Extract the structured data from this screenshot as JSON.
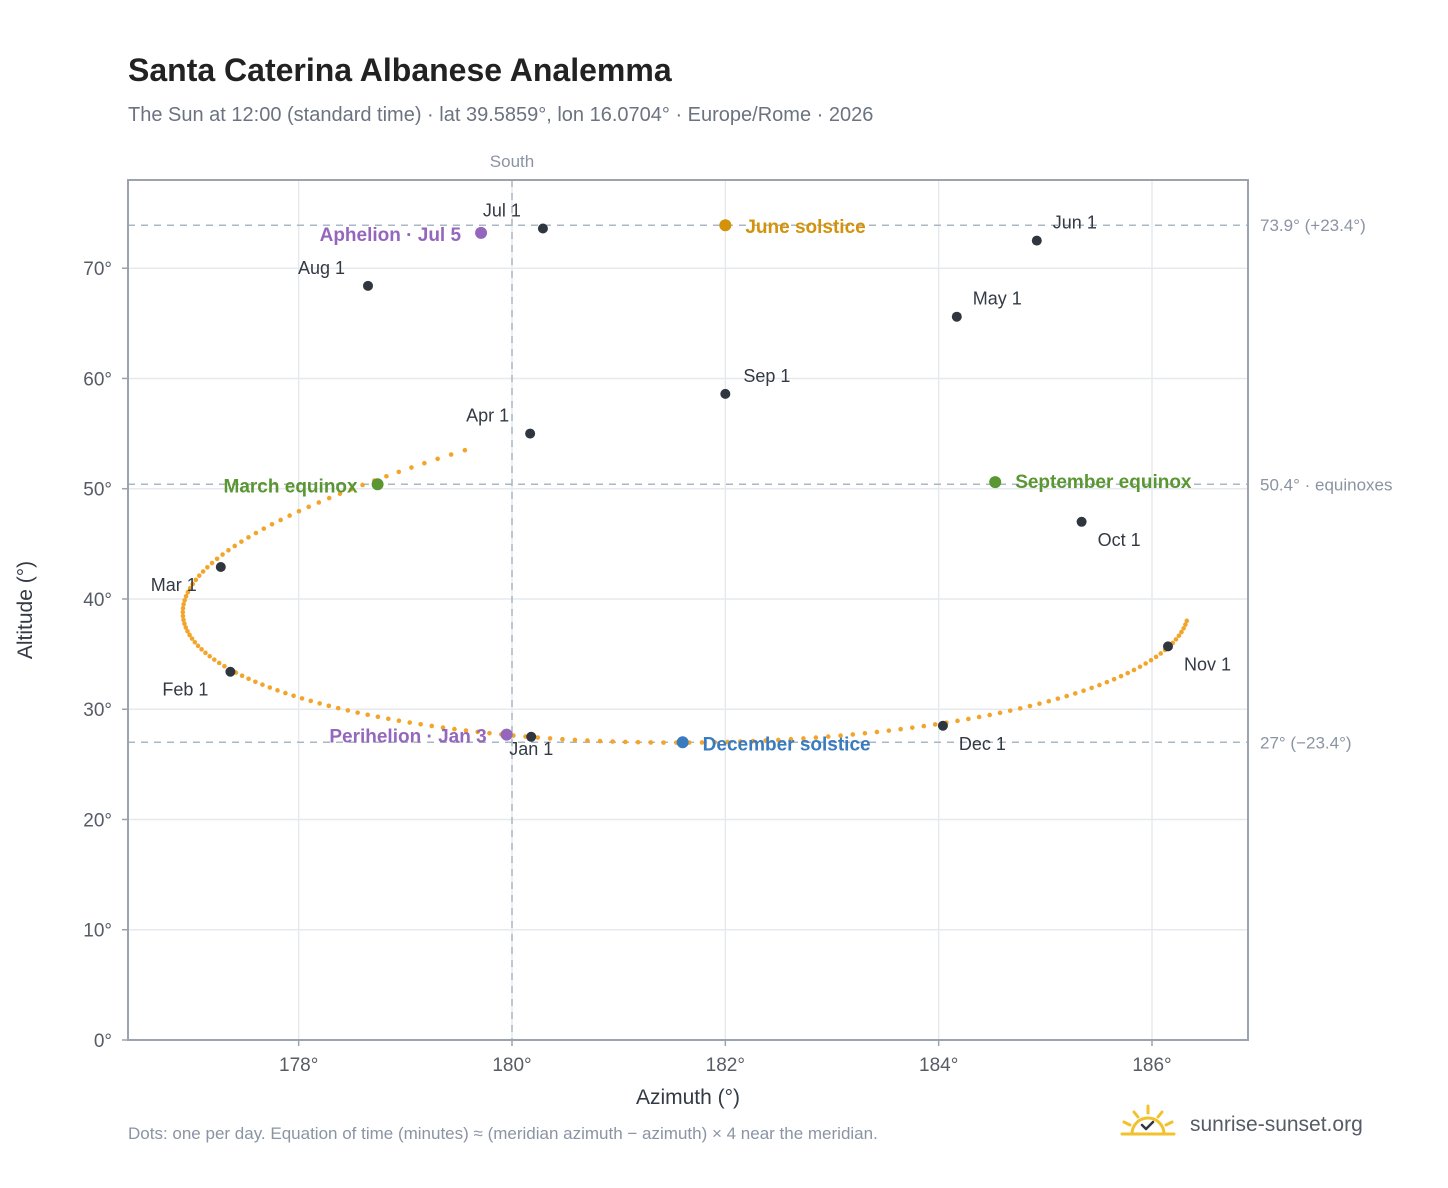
{
  "title": "Santa Caterina Albanese Analemma",
  "subtitle": "The Sun at 12:00 (standard time) · lat 39.5859°, lon 16.0704° · Europe/Rome · 2026",
  "footnote": "Dots: one per day. Equation of time (minutes) ≈ (meridian azimuth − azimuth) × 4 near the meridian.",
  "brand": "sunrise-sunset.org",
  "colors": {
    "curve": "#f2a52a",
    "month_marker": "#2f3640",
    "solstice_june": "#d4920b",
    "solstice_december": "#3a7bbf",
    "equinox": "#5a9632",
    "apsis": "#9467bd",
    "reference_line": "#a9b8c6",
    "logo": "#f2c12e"
  },
  "chart_data": {
    "type": "scatter",
    "title": "Santa Caterina Albanese Analemma",
    "xlabel": "Azimuth (°)",
    "ylabel": "Altitude (°)",
    "xlim": [
      176.4,
      186.9
    ],
    "ylim": [
      0,
      78
    ],
    "xticks": [
      178,
      180,
      182,
      184,
      186
    ],
    "xtick_labels": [
      "178°",
      "180°",
      "182°",
      "184°",
      "186°"
    ],
    "yticks": [
      0,
      10,
      20,
      30,
      40,
      50,
      60,
      70
    ],
    "ytick_labels": [
      "0°",
      "10°",
      "20°",
      "30°",
      "40°",
      "50°",
      "60°",
      "70°"
    ],
    "grid": true,
    "south_label": "South",
    "south_azimuth": 180,
    "reference_lines": [
      {
        "y": 73.9,
        "label": "73.9° (+23.4°)"
      },
      {
        "y": 50.4,
        "label": "50.4° · equinoxes"
      },
      {
        "y": 27.0,
        "label": "27° (−23.4°)"
      }
    ],
    "month_markers": [
      {
        "label": "Jan 1",
        "az": 180.18,
        "alt": 27.5
      },
      {
        "label": "Feb 1",
        "az": 177.36,
        "alt": 33.4
      },
      {
        "label": "Mar 1",
        "az": 177.27,
        "alt": 42.9
      },
      {
        "label": "Apr 1",
        "az": 180.17,
        "alt": 55.0
      },
      {
        "label": "May 1",
        "az": 184.17,
        "alt": 65.6
      },
      {
        "label": "Jun 1",
        "az": 184.92,
        "alt": 72.5
      },
      {
        "label": "Jul 1",
        "az": 180.29,
        "alt": 73.6
      },
      {
        "label": "Aug 1",
        "az": 178.65,
        "alt": 68.4
      },
      {
        "label": "Sep 1",
        "az": 182.0,
        "alt": 58.6
      },
      {
        "label": "Oct 1",
        "az": 185.34,
        "alt": 47.0
      },
      {
        "label": "Nov 1",
        "az": 186.15,
        "alt": 35.7
      },
      {
        "label": "Dec 1",
        "az": 184.04,
        "alt": 28.5
      }
    ],
    "events": [
      {
        "label": "June solstice",
        "az": 182.0,
        "alt": 73.9,
        "kind": "solstice_june"
      },
      {
        "label": "December solstice",
        "az": 181.6,
        "alt": 27.0,
        "kind": "solstice_december"
      },
      {
        "label": "March equinox",
        "az": 178.74,
        "alt": 50.4,
        "kind": "equinox"
      },
      {
        "label": "September equinox",
        "az": 184.53,
        "alt": 50.6,
        "kind": "equinox"
      },
      {
        "label": "Aphelion · Jul 5",
        "az": 179.71,
        "alt": 73.2,
        "kind": "apsis"
      },
      {
        "label": "Perihelion · Jan 3",
        "az": 179.95,
        "alt": 27.7,
        "kind": "apsis"
      }
    ]
  }
}
